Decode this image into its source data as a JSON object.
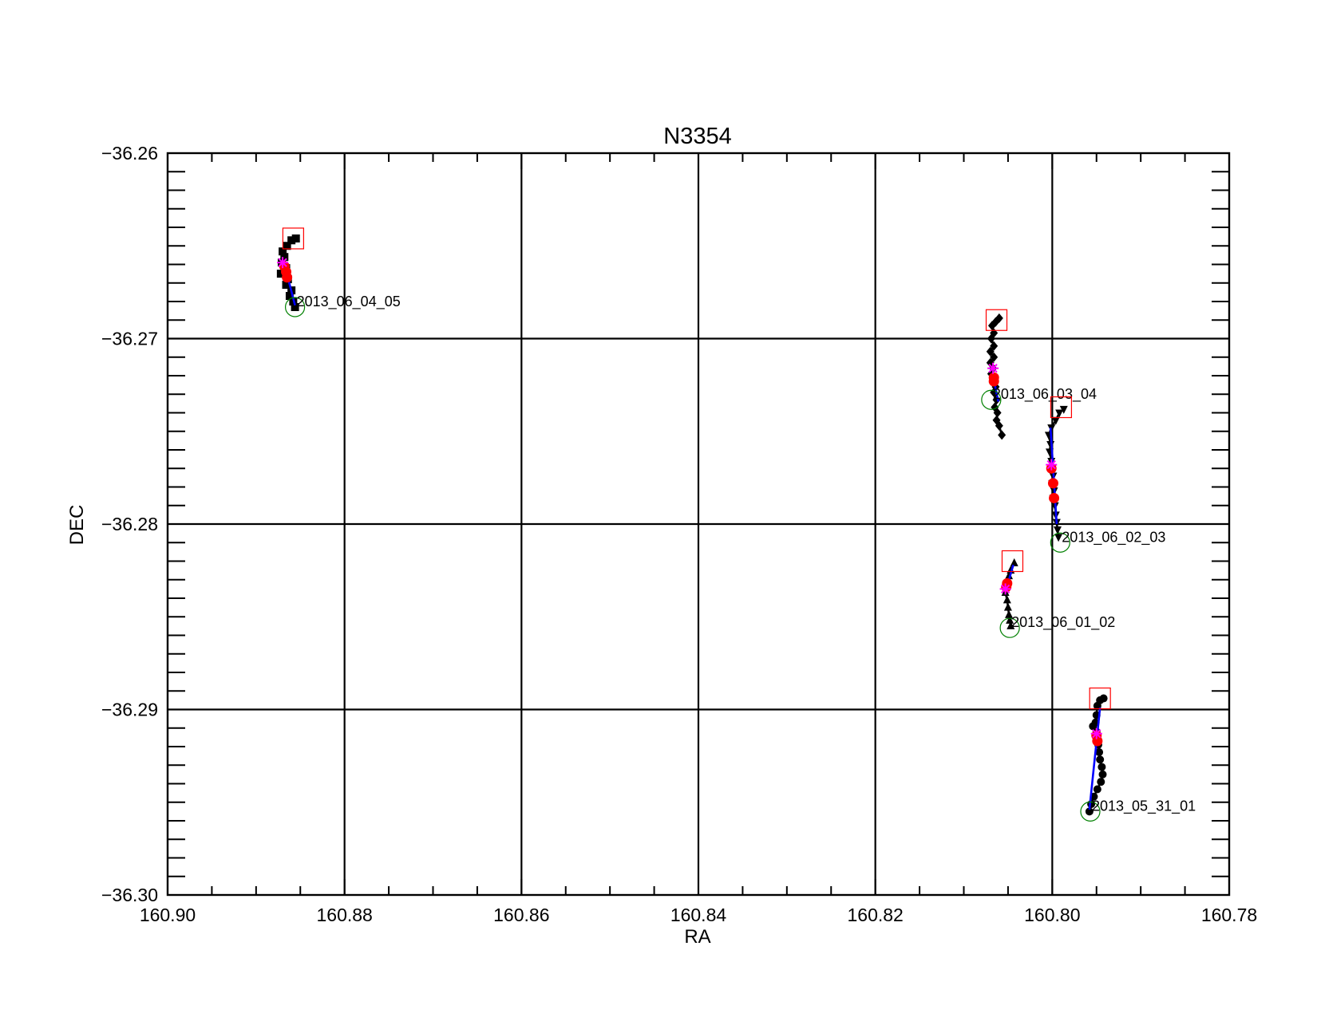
{
  "chart_data": {
    "type": "scatter",
    "title": "N3354",
    "xlabel": "RA",
    "ylabel": "DEC",
    "xlim": [
      160.9,
      160.78
    ],
    "ylim": [
      -36.3,
      -36.26
    ],
    "x_reversed": true,
    "grid": true,
    "xticks": [
      160.9,
      160.88,
      160.86,
      160.84,
      160.82,
      160.8,
      160.78
    ],
    "xtick_labels": [
      "160.90",
      "160.88",
      "160.86",
      "160.84",
      "160.82",
      "160.80",
      "160.78"
    ],
    "yticks": [
      -36.26,
      -36.27,
      -36.28,
      -36.29,
      -36.3
    ],
    "ytick_labels": [
      "−36.26",
      "−36.27",
      "−36.28",
      "−36.29",
      "−36.30"
    ],
    "colors": {
      "track": "#000000",
      "fit_line": "#0000ff",
      "highlight": "#ff0000",
      "star": "#ff00ff",
      "start_marker": "#ff0000",
      "end_marker": "#008000"
    },
    "series": [
      {
        "name": "2013_06_04_05",
        "marker": "square",
        "points": [
          [
            160.8855,
            -36.2646
          ],
          [
            160.886,
            -36.2647
          ],
          [
            160.8865,
            -36.265
          ],
          [
            160.887,
            -36.2653
          ],
          [
            160.8868,
            -36.2656
          ],
          [
            160.8871,
            -36.2659
          ],
          [
            160.8866,
            -36.2662
          ],
          [
            160.8872,
            -36.2665
          ],
          [
            160.8864,
            -36.2668
          ],
          [
            160.8866,
            -36.2671
          ],
          [
            160.886,
            -36.2674
          ],
          [
            160.8862,
            -36.2677
          ],
          [
            160.8858,
            -36.268
          ],
          [
            160.8856,
            -36.2683
          ]
        ],
        "red": [
          [
            160.8868,
            -36.2661
          ],
          [
            160.8866,
            -36.2664
          ],
          [
            160.8865,
            -36.2667
          ]
        ],
        "star": [
          160.887,
          -36.2659
        ],
        "fit": [
          [
            160.8869,
            -36.2658
          ],
          [
            160.8856,
            -36.2682
          ]
        ],
        "start": [
          160.8858,
          -36.2646
        ],
        "end": [
          160.8856,
          -36.2683
        ]
      },
      {
        "name": "2013_06_03_04",
        "marker": "diamond",
        "points": [
          [
            160.806,
            -36.2689
          ],
          [
            160.8064,
            -36.2691
          ],
          [
            160.8068,
            -36.2693
          ],
          [
            160.8066,
            -36.2697
          ],
          [
            160.8069,
            -36.27
          ],
          [
            160.8066,
            -36.2704
          ],
          [
            160.807,
            -36.2707
          ],
          [
            160.8066,
            -36.271
          ],
          [
            160.807,
            -36.2713
          ],
          [
            160.8067,
            -36.2716
          ],
          [
            160.8069,
            -36.2719
          ],
          [
            160.8066,
            -36.2722
          ],
          [
            160.8064,
            -36.2726
          ],
          [
            160.8066,
            -36.2729
          ],
          [
            160.8063,
            -36.2733
          ],
          [
            160.8065,
            -36.2737
          ],
          [
            160.8062,
            -36.274
          ],
          [
            160.8063,
            -36.2744
          ],
          [
            160.806,
            -36.2747
          ],
          [
            160.8057,
            -36.2752
          ]
        ],
        "red": [
          [
            160.8066,
            -36.2721
          ],
          [
            160.8066,
            -36.2723
          ]
        ],
        "star": [
          160.8067,
          -36.2716
        ],
        "fit": [
          [
            160.8067,
            -36.272
          ],
          [
            160.8061,
            -36.2734
          ]
        ],
        "start": [
          160.8063,
          -36.269
        ],
        "end": [
          160.8069,
          -36.2733
        ]
      },
      {
        "name": "2013_06_02_03",
        "marker": "triangle-down",
        "points": [
          [
            160.7987,
            -36.2738
          ],
          [
            160.7992,
            -36.274
          ],
          [
            160.7996,
            -36.2744
          ],
          [
            160.8001,
            -36.2748
          ],
          [
            160.8004,
            -36.2752
          ],
          [
            160.8002,
            -36.2757
          ],
          [
            160.8003,
            -36.2761
          ],
          [
            160.8001,
            -36.2766
          ],
          [
            160.8,
            -36.277
          ],
          [
            160.7999,
            -36.2774
          ],
          [
            160.8,
            -36.2778
          ],
          [
            160.7998,
            -36.2782
          ],
          [
            160.7999,
            -36.2786
          ],
          [
            160.7997,
            -36.279
          ],
          [
            160.7996,
            -36.2795
          ],
          [
            160.7995,
            -36.2799
          ],
          [
            160.7994,
            -36.2803
          ],
          [
            160.7993,
            -36.2807
          ]
        ],
        "red": [
          [
            160.8001,
            -36.277
          ],
          [
            160.7999,
            -36.2778
          ],
          [
            160.7998,
            -36.2786
          ]
        ],
        "star": [
          160.8001,
          -36.2768
        ],
        "fit": [
          [
            160.8002,
            -36.2748
          ],
          [
            160.7995,
            -36.28
          ]
        ],
        "start": [
          160.799,
          -36.2737
        ],
        "end": [
          160.7991,
          -36.281
        ]
      },
      {
        "name": "2013_06_01_02",
        "marker": "triangle-up",
        "points": [
          [
            160.8043,
            -36.2821
          ],
          [
            160.8047,
            -36.2825
          ],
          [
            160.8049,
            -36.2828
          ],
          [
            160.8051,
            -36.2831
          ],
          [
            160.8052,
            -36.2834
          ],
          [
            160.8053,
            -36.2837
          ],
          [
            160.8051,
            -36.2841
          ],
          [
            160.805,
            -36.2845
          ],
          [
            160.8049,
            -36.2849
          ],
          [
            160.8048,
            -36.2852
          ],
          [
            160.8047,
            -36.2855
          ]
        ],
        "red": [
          [
            160.8051,
            -36.2832
          ],
          [
            160.8052,
            -36.2834
          ]
        ],
        "star": [
          160.8053,
          -36.2835
        ],
        "fit": [
          [
            160.8052,
            -36.2835
          ],
          [
            160.8044,
            -36.2822
          ]
        ],
        "start": [
          160.8045,
          -36.282
        ],
        "end": [
          160.8048,
          -36.2856
        ]
      },
      {
        "name": "2013_05_31_01",
        "marker": "circle",
        "points": [
          [
            160.7942,
            -36.2894
          ],
          [
            160.7946,
            -36.2895
          ],
          [
            160.7949,
            -36.2898
          ],
          [
            160.795,
            -36.2903
          ],
          [
            160.7951,
            -36.2907
          ],
          [
            160.7954,
            -36.2909
          ],
          [
            160.795,
            -36.2912
          ],
          [
            160.7949,
            -36.2916
          ],
          [
            160.7948,
            -36.2919
          ],
          [
            160.7947,
            -36.2923
          ],
          [
            160.7946,
            -36.2927
          ],
          [
            160.7944,
            -36.2931
          ],
          [
            160.7943,
            -36.2935
          ],
          [
            160.7945,
            -36.2939
          ],
          [
            160.7949,
            -36.2943
          ],
          [
            160.7953,
            -36.2947
          ],
          [
            160.7956,
            -36.2951
          ],
          [
            160.7958,
            -36.2955
          ]
        ],
        "red": [
          [
            160.795,
            -36.2914
          ],
          [
            160.7949,
            -36.2917
          ]
        ],
        "star": [
          160.795,
          -36.2913
        ],
        "fit": [
          [
            160.7946,
            -36.2899
          ],
          [
            160.7958,
            -36.2954
          ]
        ],
        "start": [
          160.7946,
          -36.2894
        ],
        "end": [
          160.7957,
          -36.2955
        ]
      }
    ]
  }
}
